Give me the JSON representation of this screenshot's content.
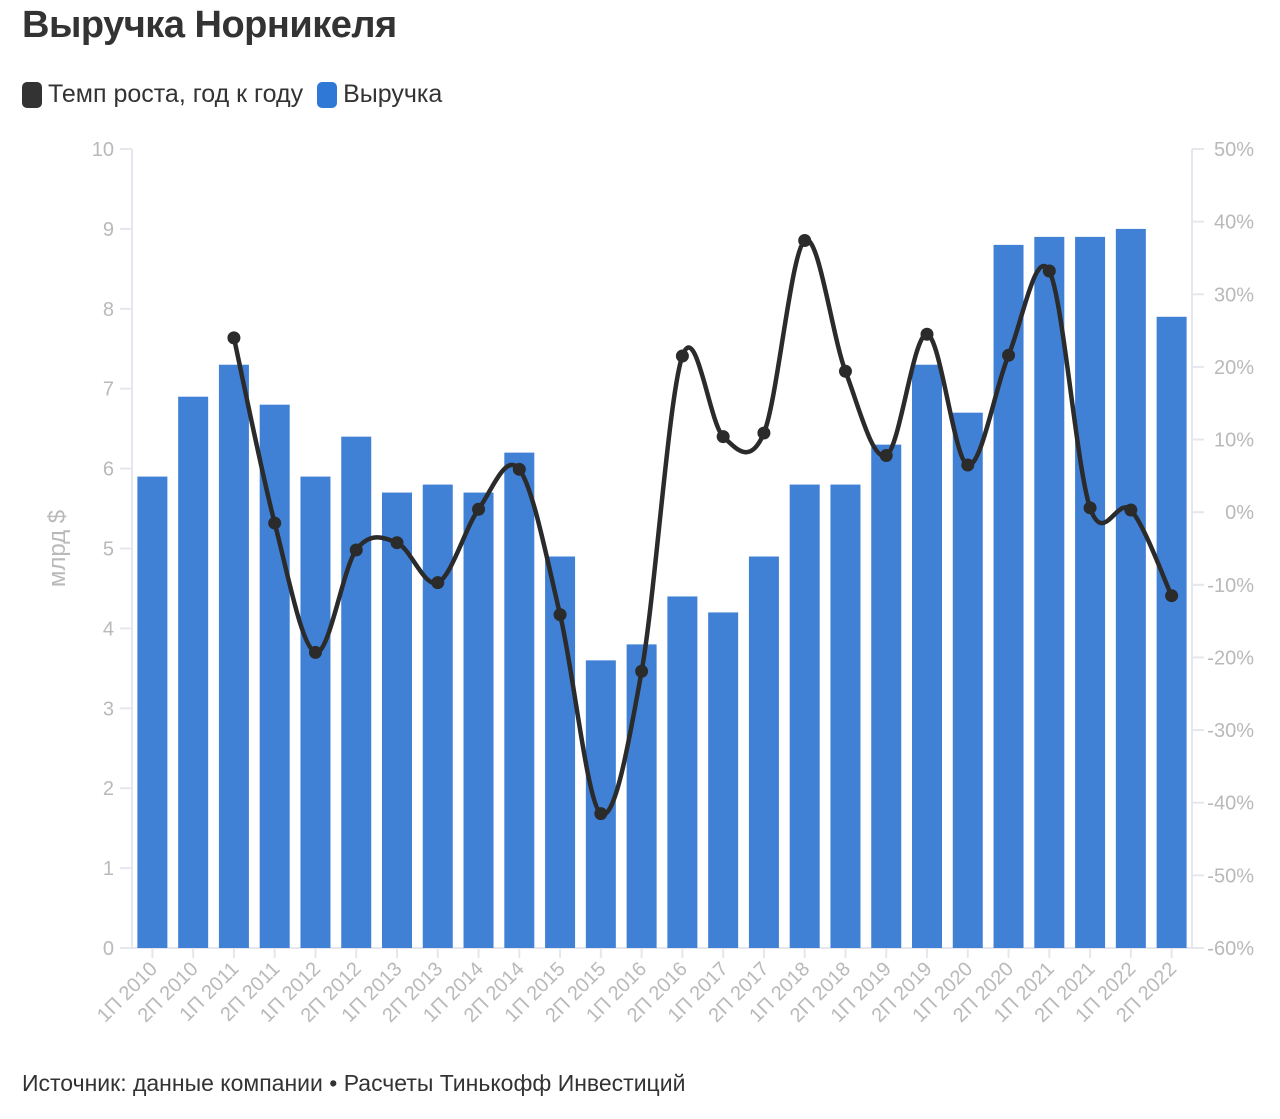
{
  "title": "Выручка Норникеля",
  "legend": [
    {
      "label": "Темп роста, год к году",
      "color": "#333333"
    },
    {
      "label": "Выручка",
      "color": "#2f78d6"
    }
  ],
  "footer": "Источник: данные компании • Расчеты Тинькофф Инвестиций",
  "chart_data": {
    "type": "bar",
    "categories": [
      "1П 2010",
      "2П 2010",
      "1П 2011",
      "2П 2011",
      "1П 2012",
      "2П 2012",
      "1П 2013",
      "2П 2013",
      "1П 2014",
      "2П 2014",
      "1П 2015",
      "2П 2015",
      "1П 2016",
      "2П 2016",
      "1П 2017",
      "2П 2017",
      "1П 2018",
      "2П 2018",
      "1П 2019",
      "2П 2019",
      "1П 2020",
      "2П 2020",
      "1П 2021",
      "2П 2021",
      "1П 2022",
      "2П 2022"
    ],
    "series": [
      {
        "name": "Выручка",
        "type": "bar",
        "axis": "left",
        "color": "#4081d6",
        "values": [
          5.9,
          6.9,
          7.3,
          6.8,
          5.9,
          6.4,
          5.7,
          5.8,
          5.7,
          6.2,
          4.9,
          3.6,
          3.8,
          4.4,
          4.2,
          4.9,
          5.8,
          5.8,
          6.3,
          7.3,
          6.7,
          8.8,
          8.9,
          8.9,
          9.0,
          7.9
        ]
      },
      {
        "name": "Темп роста, год к году",
        "type": "line",
        "axis": "right",
        "color": "#2b2b2b",
        "values": [
          null,
          null,
          24.0,
          -1.5,
          -19.3,
          -5.2,
          -4.2,
          -9.7,
          0.4,
          5.9,
          -14.1,
          -41.5,
          -21.9,
          21.5,
          10.4,
          10.9,
          37.4,
          19.4,
          7.8,
          24.5,
          6.5,
          21.6,
          33.2,
          0.6,
          0.3,
          -11.5
        ]
      }
    ],
    "yaxis_left": {
      "label": "млрд $",
      "min": 0,
      "max": 10,
      "ticks": [
        "0",
        "1",
        "2",
        "3",
        "4",
        "5",
        "6",
        "7",
        "8",
        "9",
        "10"
      ]
    },
    "yaxis_right": {
      "min": -60,
      "max": 50,
      "ticks": [
        "-60%",
        "-50%",
        "-40%",
        "-30%",
        "-20%",
        "-10%",
        "0%",
        "10%",
        "20%",
        "30%",
        "40%",
        "50%"
      ]
    },
    "grid": false,
    "legend_position": "top-left"
  }
}
